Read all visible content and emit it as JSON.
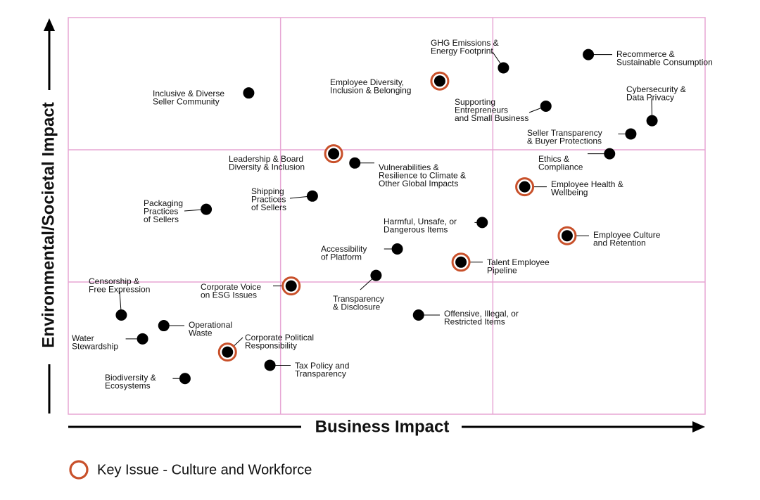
{
  "chart_data": {
    "type": "scatter",
    "title": "",
    "xlabel": "Business Impact",
    "ylabel": "Environmental/Societal Impact",
    "xlim": [
      0,
      3
    ],
    "ylim": [
      0,
      3
    ],
    "grid": true,
    "legend_position": "bottom-left",
    "colors": {
      "grid": "#e7a6d4",
      "dot": "#000000",
      "key_ring": "#c8502a",
      "axis": "#000000"
    },
    "legend": {
      "key_label": "Key Issue - Culture and Workforce"
    },
    "points": [
      {
        "name": "GHG Emissions & Energy Footprint",
        "lines": [
          "GHG Emissions &",
          "Energy Footprint"
        ],
        "x": 2.05,
        "y": 2.62,
        "key": false
      },
      {
        "name": "Recommerce & Sustainable Consumption",
        "lines": [
          "Recommerce &",
          "Sustainable Consumption"
        ],
        "x": 2.45,
        "y": 2.72,
        "key": false
      },
      {
        "name": "Employee Diversity, Inclusion & Belonging",
        "lines": [
          "Employee Diversity,",
          "Inclusion & Belonging"
        ],
        "x": 1.75,
        "y": 2.52,
        "key": true
      },
      {
        "name": "Inclusive & Diverse Seller Community",
        "lines": [
          "Inclusive & Diverse",
          "Seller Community"
        ],
        "x": 0.85,
        "y": 2.43,
        "key": false
      },
      {
        "name": "Cybersecurity & Data Privacy",
        "lines": [
          "Cybersecurity &",
          "Data Privacy"
        ],
        "x": 2.75,
        "y": 2.22,
        "key": false
      },
      {
        "name": "Supporting Entrepreneurs and Small Business",
        "lines": [
          "Supporting",
          "Entrepreneurs",
          "and Small Business"
        ],
        "x": 2.25,
        "y": 2.33,
        "key": false
      },
      {
        "name": "Seller Transparency & Buyer Protections",
        "lines": [
          "Seller Transparency",
          "& Buyer Protections"
        ],
        "x": 2.65,
        "y": 2.12,
        "key": false
      },
      {
        "name": "Ethics & Compliance",
        "lines": [
          "Ethics &",
          "Compliance"
        ],
        "x": 2.55,
        "y": 1.97,
        "key": false
      },
      {
        "name": "Leadership & Board Diversity & Inclusion",
        "lines": [
          "Leadership & Board",
          "Diversity & Inclusion"
        ],
        "x": 1.25,
        "y": 1.97,
        "key": true
      },
      {
        "name": "Vulnerabilities & Resilience to Climate & Other Global Impacts",
        "lines": [
          "Vulnerabilities &",
          "Resilience to Climate &",
          "Other Global Impacts"
        ],
        "x": 1.35,
        "y": 1.9,
        "key": false
      },
      {
        "name": "Employee Health & Wellbeing",
        "lines": [
          "Employee Health &",
          "Wellbeing"
        ],
        "x": 2.15,
        "y": 1.72,
        "key": true
      },
      {
        "name": "Shipping Practices of Sellers",
        "lines": [
          "Shipping",
          "Practices",
          "of Sellers"
        ],
        "x": 1.15,
        "y": 1.65,
        "key": false
      },
      {
        "name": "Packaging Practices of Sellers",
        "lines": [
          "Packaging",
          "Practices",
          "of Sellers"
        ],
        "x": 0.65,
        "y": 1.55,
        "key": false
      },
      {
        "name": "Harmful, Unsafe, or Dangerous Items",
        "lines": [
          "Harmful, Unsafe, or",
          "Dangerous Items"
        ],
        "x": 1.95,
        "y": 1.45,
        "key": false
      },
      {
        "name": "Employee Culture and Retention",
        "lines": [
          "Employee Culture",
          "and Retention"
        ],
        "x": 2.35,
        "y": 1.35,
        "key": true
      },
      {
        "name": "Accessibility of Platform",
        "lines": [
          "Accessibility",
          "of Platform"
        ],
        "x": 1.55,
        "y": 1.25,
        "key": false
      },
      {
        "name": "Talent Employee Pipeline",
        "lines": [
          "Talent Employee",
          "Pipeline"
        ],
        "x": 1.85,
        "y": 1.15,
        "key": true
      },
      {
        "name": "Transparency & Disclosure",
        "lines": [
          "Transparency",
          "& Disclosure"
        ],
        "x": 1.45,
        "y": 1.05,
        "key": false
      },
      {
        "name": "Corporate Voice on ESG Issues",
        "lines": [
          "Corporate Voice",
          "on ESG Issues"
        ],
        "x": 1.05,
        "y": 0.97,
        "key": true
      },
      {
        "name": "Censorship & Free Expression",
        "lines": [
          "Censorship &",
          "Free Expression"
        ],
        "x": 0.25,
        "y": 0.75,
        "key": false
      },
      {
        "name": "Offensive, Illegal, or Restricted Items",
        "lines": [
          "Offensive, Illegal, or",
          "Restricted Items"
        ],
        "x": 1.65,
        "y": 0.75,
        "key": false
      },
      {
        "name": "Operational Waste",
        "lines": [
          "Operational",
          "Waste"
        ],
        "x": 0.45,
        "y": 0.67,
        "key": false
      },
      {
        "name": "Water Stewardship",
        "lines": [
          "Water",
          "Stewardship"
        ],
        "x": 0.35,
        "y": 0.57,
        "key": false
      },
      {
        "name": "Corporate Political Responsibility",
        "lines": [
          "Corporate Political",
          "Responsibility"
        ],
        "x": 0.75,
        "y": 0.47,
        "key": true
      },
      {
        "name": "Tax Policy and Transparency",
        "lines": [
          "Tax Policy and",
          "Transparency"
        ],
        "x": 0.95,
        "y": 0.37,
        "key": false
      },
      {
        "name": "Biodiversity & Ecosystems",
        "lines": [
          "Biodiversity &",
          "Ecosystems"
        ],
        "x": 0.55,
        "y": 0.27,
        "key": false
      }
    ]
  }
}
